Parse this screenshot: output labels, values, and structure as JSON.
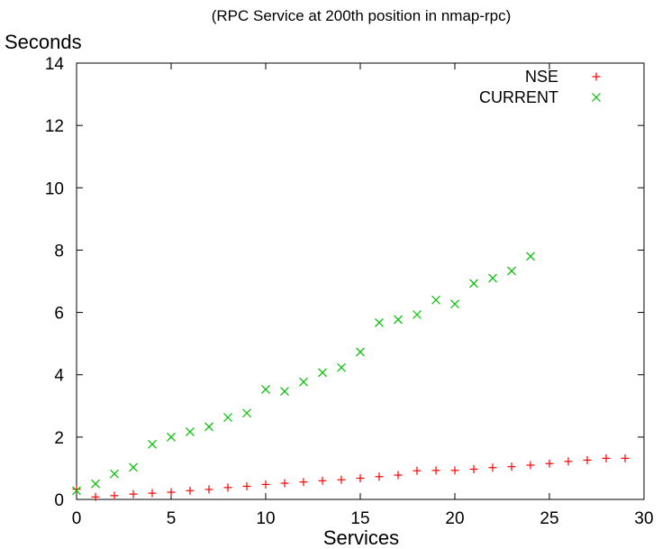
{
  "chart_data": {
    "type": "scatter",
    "title": "(RPC Service at 200th position in nmap-rpc)",
    "xlabel": "Services",
    "ylabel": "Seconds",
    "xlim": [
      0,
      30
    ],
    "ylim": [
      0,
      14
    ],
    "xticks": [
      0,
      5,
      10,
      15,
      20,
      25,
      30
    ],
    "yticks": [
      0,
      2,
      4,
      6,
      8,
      10,
      12,
      14
    ],
    "grid": false,
    "legend_position": "top-right",
    "series": [
      {
        "name": "NSE",
        "marker": "plus",
        "color": "#ff0000",
        "x": [
          0,
          1,
          2,
          3,
          4,
          5,
          6,
          7,
          8,
          9,
          10,
          11,
          12,
          13,
          14,
          15,
          16,
          17,
          18,
          19,
          20,
          21,
          22,
          23,
          24,
          25,
          26,
          27,
          28,
          29
        ],
        "y": [
          0.33,
          0.08,
          0.12,
          0.17,
          0.2,
          0.23,
          0.28,
          0.32,
          0.38,
          0.42,
          0.48,
          0.52,
          0.56,
          0.6,
          0.63,
          0.68,
          0.73,
          0.78,
          0.92,
          0.93,
          0.93,
          0.97,
          1.02,
          1.05,
          1.1,
          1.15,
          1.22,
          1.26,
          1.32,
          1.32
        ]
      },
      {
        "name": "CURRENT",
        "marker": "cross",
        "color": "#00c000",
        "x": [
          0,
          1,
          2,
          3,
          4,
          5,
          6,
          7,
          8,
          9,
          10,
          11,
          12,
          13,
          14,
          15,
          16,
          17,
          18,
          19,
          20,
          21,
          22,
          23,
          24
        ],
        "y": [
          0.28,
          0.5,
          0.82,
          1.03,
          1.77,
          2.0,
          2.17,
          2.33,
          2.63,
          2.77,
          3.53,
          3.47,
          3.77,
          4.07,
          4.23,
          4.73,
          5.67,
          5.77,
          5.93,
          6.4,
          6.27,
          6.93,
          7.1,
          7.33,
          7.8
        ]
      }
    ]
  }
}
